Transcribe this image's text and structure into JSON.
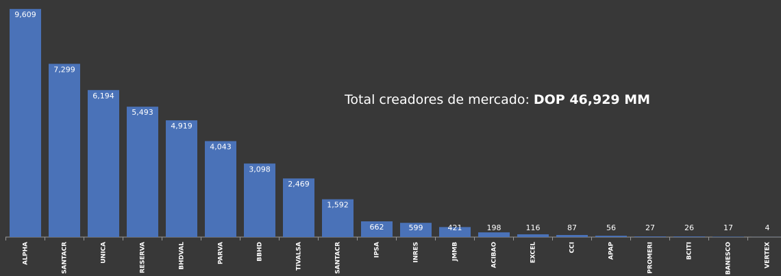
{
  "chart_data": {
    "type": "bar",
    "categories": [
      "ALPHA",
      "SANTACR",
      "UNICA",
      "RESERVA",
      "BHDVAL",
      "PARVA",
      "BBHD",
      "TIVALSA",
      "SANTACR",
      "IPSA",
      "INRES",
      "JMMB",
      "ACIBAO",
      "EXCEL",
      "CCI",
      "APAP",
      "PROMERI",
      "BCITI",
      "BANESCO",
      "VERTEX"
    ],
    "values": [
      9609,
      7299,
      6194,
      5493,
      4919,
      4043,
      3098,
      2469,
      1592,
      662,
      599,
      421,
      198,
      116,
      87,
      56,
      27,
      26,
      17,
      4
    ],
    "value_labels": [
      "9,609",
      "7,299",
      "6,194",
      "5,493",
      "4,919",
      "4,043",
      "3,098",
      "2,469",
      "1,592",
      "662",
      "599",
      "421",
      "198",
      "116",
      "87",
      "56",
      "27",
      "26",
      "17",
      "4"
    ],
    "color": "#4a72b8",
    "ylim": [
      0,
      9700
    ],
    "annotation": {
      "text": "Total creadores de mercado:",
      "emphasis": "DOP 46,929 MM"
    }
  }
}
